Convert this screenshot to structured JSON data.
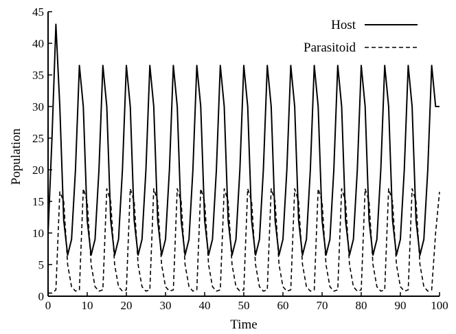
{
  "chart_data": {
    "type": "line",
    "title": "",
    "xlabel": "Time",
    "ylabel": "Population",
    "xlim": [
      0,
      100
    ],
    "ylim": [
      0,
      45
    ],
    "xticks": [
      0,
      10,
      20,
      30,
      40,
      50,
      60,
      70,
      80,
      90,
      100
    ],
    "yticks": [
      0,
      5,
      10,
      15,
      20,
      25,
      30,
      35,
      40,
      45
    ],
    "grid": false,
    "legend_position": "top-right",
    "x": [
      0,
      1,
      2,
      3,
      4,
      5,
      6,
      7,
      8,
      9,
      10,
      11,
      12,
      13,
      14,
      15,
      16,
      17,
      18,
      19,
      20,
      21,
      22,
      23,
      24,
      25,
      26,
      27,
      28,
      29,
      30,
      31,
      32,
      33,
      34,
      35,
      36,
      37,
      38,
      39,
      40,
      41,
      42,
      43,
      44,
      45,
      46,
      47,
      48,
      49,
      50,
      51,
      52,
      53,
      54,
      55,
      56,
      57,
      58,
      59,
      60,
      61,
      62,
      63,
      64,
      65,
      66,
      67,
      68,
      69,
      70,
      71,
      72,
      73,
      74,
      75,
      76,
      77,
      78,
      79,
      80,
      81,
      82,
      83,
      84,
      85,
      86,
      87,
      88,
      89,
      90,
      91,
      92,
      93,
      94,
      95,
      96,
      97,
      98,
      99,
      100
    ],
    "series": [
      {
        "name": "Host",
        "style": "solid",
        "color": "#000000",
        "values": [
          10,
          25,
          43,
          30,
          12,
          6.5,
          9,
          20,
          36.5,
          30,
          12,
          6.5,
          9,
          20,
          36.5,
          30,
          12,
          6.5,
          9,
          20,
          36.5,
          30,
          12,
          6.5,
          9,
          20,
          36.5,
          30,
          12,
          6.5,
          9,
          20,
          36.5,
          30,
          12,
          6.5,
          9,
          20,
          36.5,
          30,
          12,
          6.5,
          9,
          20,
          36.5,
          30,
          12,
          6.5,
          9,
          20,
          36.5,
          30,
          12,
          6.5,
          9,
          20,
          36.5,
          30,
          12,
          6.5,
          9,
          20,
          36.5,
          30,
          12,
          6.5,
          9,
          20,
          36.5,
          30,
          12,
          6.5,
          9,
          20,
          36.5,
          30,
          12,
          6.5,
          9,
          20,
          36.5,
          30,
          12,
          6.5,
          9,
          20,
          36.5,
          30,
          12,
          6.5,
          9,
          20,
          36.5,
          30,
          12,
          6.5,
          9,
          20,
          36.5,
          30,
          30
        ]
      },
      {
        "name": "Parasitoid",
        "style": "dashed",
        "color": "#000000",
        "values": [
          0.5,
          0.5,
          1,
          16.5,
          15,
          5,
          1.5,
          0.8,
          1,
          17,
          15,
          5,
          1.5,
          0.8,
          1,
          17,
          15,
          5,
          1.5,
          0.8,
          1,
          17,
          15,
          5,
          1.5,
          0.8,
          1,
          17,
          15,
          5,
          1.5,
          0.8,
          1,
          17,
          15,
          5,
          1.5,
          0.8,
          1,
          17,
          15,
          5,
          1.5,
          0.8,
          1,
          17,
          15,
          5,
          1.5,
          0.8,
          1,
          17,
          15,
          5,
          1.5,
          0.8,
          1,
          17,
          15,
          5,
          1.5,
          0.8,
          1,
          17,
          15,
          5,
          1.5,
          0.8,
          1,
          17,
          15,
          5,
          1.5,
          0.8,
          1,
          17,
          15,
          5,
          1.5,
          0.8,
          1,
          17,
          15,
          5,
          1.5,
          0.8,
          1,
          17,
          15,
          5,
          1.5,
          0.8,
          1,
          17,
          15,
          5,
          1.5,
          0.8,
          1,
          10,
          16.5
        ]
      }
    ]
  }
}
